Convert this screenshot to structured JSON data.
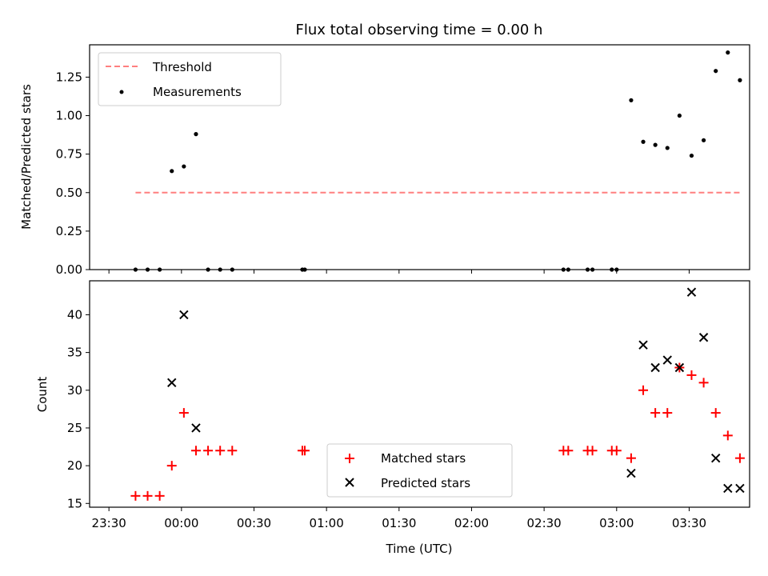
{
  "chart_data": [
    {
      "type": "scatter",
      "title": "Flux total observing time = 0.00 h",
      "ylabel": "Matched/Predicted stars",
      "ylim": [
        0,
        1.46
      ],
      "yticks": [
        "0.00",
        "0.25",
        "0.50",
        "0.75",
        "1.00",
        "1.25"
      ],
      "legend_position": "top-left",
      "threshold": {
        "name": "Threshold",
        "value": 0.5,
        "x_start": 11,
        "x_end": 261,
        "color": "#ff7f7f"
      },
      "series": [
        {
          "name": "Measurements",
          "color": "#000000",
          "points": [
            [
              11,
              0.0
            ],
            [
              16,
              0.0
            ],
            [
              21,
              0.0
            ],
            [
              26,
              0.64
            ],
            [
              31,
              0.67
            ],
            [
              36,
              0.88
            ],
            [
              41,
              0.0
            ],
            [
              46,
              0.0
            ],
            [
              51,
              0.0
            ],
            [
              80,
              0.0
            ],
            [
              81,
              0.0
            ],
            [
              188,
              0.0
            ],
            [
              190,
              0.0
            ],
            [
              198,
              0.0
            ],
            [
              200,
              0.0
            ],
            [
              208,
              0.0
            ],
            [
              210,
              0.0
            ],
            [
              216,
              1.1
            ],
            [
              221,
              0.83
            ],
            [
              226,
              0.81
            ],
            [
              231,
              0.79
            ],
            [
              236,
              1.0
            ],
            [
              241,
              0.74
            ],
            [
              246,
              0.84
            ],
            [
              251,
              1.29
            ],
            [
              256,
              1.41
            ],
            [
              261,
              1.23
            ]
          ]
        }
      ]
    },
    {
      "type": "scatter",
      "xlabel": "Time (UTC)",
      "ylabel": "Count",
      "ylim": [
        14.5,
        44.5
      ],
      "yticks": [
        "15",
        "20",
        "25",
        "30",
        "35",
        "40"
      ],
      "xlim": [
        -8,
        265
      ],
      "xticks": [
        {
          "v": 0,
          "label": "23:30"
        },
        {
          "v": 30,
          "label": "00:00"
        },
        {
          "v": 60,
          "label": "00:30"
        },
        {
          "v": 90,
          "label": "01:00"
        },
        {
          "v": 120,
          "label": "01:30"
        },
        {
          "v": 150,
          "label": "02:00"
        },
        {
          "v": 180,
          "label": "02:30"
        },
        {
          "v": 210,
          "label": "03:00"
        },
        {
          "v": 240,
          "label": "03:30"
        }
      ],
      "legend_position": "lower-center",
      "series": [
        {
          "name": "Matched stars",
          "color": "#ff0000",
          "marker": "plus",
          "points": [
            [
              11,
              16
            ],
            [
              16,
              16
            ],
            [
              21,
              16
            ],
            [
              26,
              20
            ],
            [
              31,
              27
            ],
            [
              36,
              22
            ],
            [
              41,
              22
            ],
            [
              46,
              22
            ],
            [
              51,
              22
            ],
            [
              80,
              22
            ],
            [
              81,
              22
            ],
            [
              188,
              22
            ],
            [
              190,
              22
            ],
            [
              198,
              22
            ],
            [
              200,
              22
            ],
            [
              208,
              22
            ],
            [
              210,
              22
            ],
            [
              216,
              21
            ],
            [
              221,
              30
            ],
            [
              226,
              27
            ],
            [
              231,
              27
            ],
            [
              236,
              33
            ],
            [
              241,
              32
            ],
            [
              246,
              31
            ],
            [
              251,
              27
            ],
            [
              256,
              24
            ],
            [
              261,
              21
            ]
          ]
        },
        {
          "name": "Predicted stars",
          "color": "#000000",
          "marker": "x",
          "points": [
            [
              26,
              31
            ],
            [
              31,
              40
            ],
            [
              36,
              25
            ],
            [
              216,
              19
            ],
            [
              221,
              36
            ],
            [
              226,
              33
            ],
            [
              231,
              34
            ],
            [
              236,
              33
            ],
            [
              241,
              43
            ],
            [
              246,
              37
            ],
            [
              251,
              21
            ],
            [
              256,
              17
            ],
            [
              261,
              17
            ]
          ]
        }
      ]
    }
  ]
}
